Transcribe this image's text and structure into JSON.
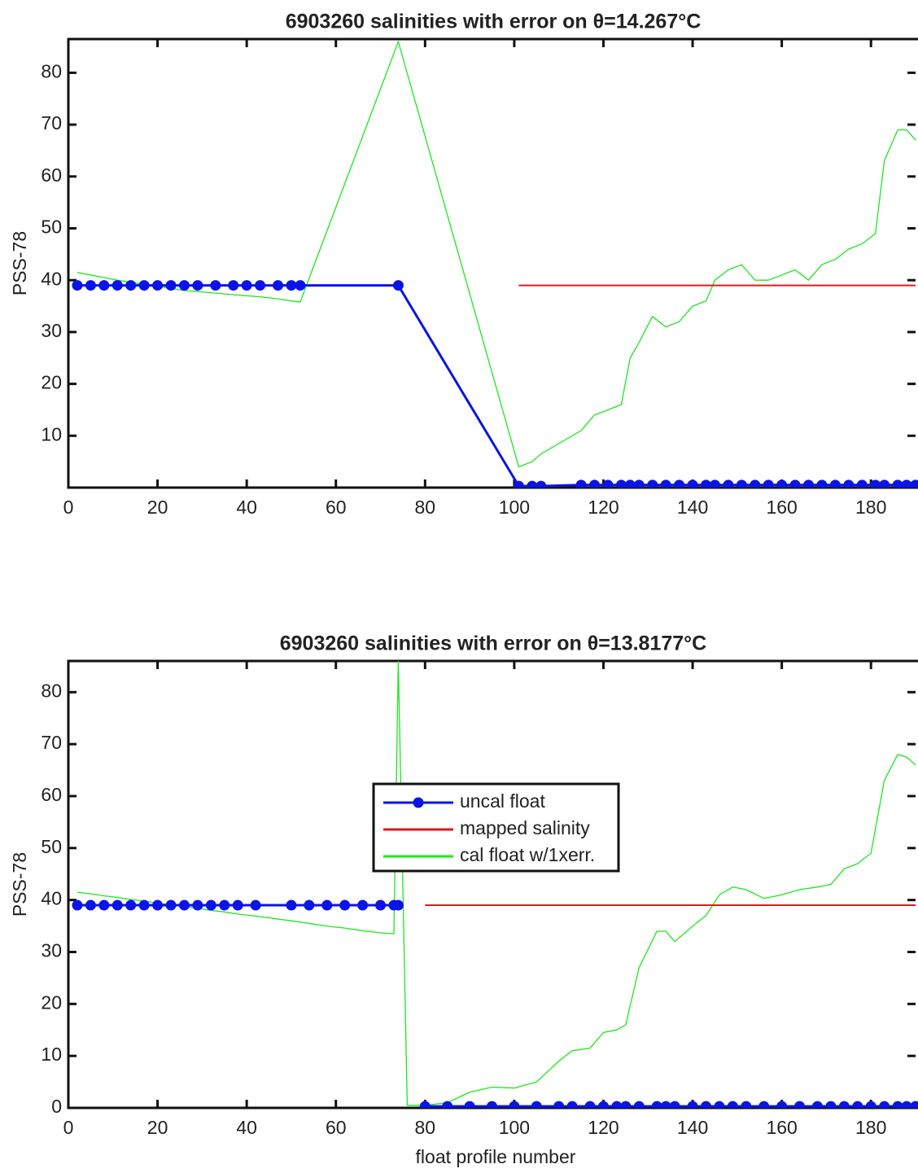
{
  "chart_data": [
    {
      "type": "line",
      "title": "6903260 salinities with error on θ=14.267°C",
      "ylabel": "PSS-78",
      "x": [
        2,
        5,
        8,
        11,
        14,
        17,
        20,
        23,
        26,
        29,
        33,
        37,
        40,
        43,
        47,
        50,
        52,
        74,
        101,
        104,
        106,
        115,
        118,
        121,
        124,
        126,
        128,
        131,
        134,
        137,
        140,
        143,
        145,
        148,
        151,
        154,
        157,
        160,
        163,
        166,
        169,
        172,
        175,
        178,
        181,
        183,
        186,
        188,
        190
      ],
      "xlim": [
        0,
        190
      ],
      "xticks": [
        0,
        20,
        40,
        60,
        80,
        100,
        120,
        140,
        160,
        180
      ],
      "ylim": [
        0,
        86.5
      ],
      "yticks": [
        10,
        20,
        30,
        40,
        50,
        60,
        70,
        80
      ],
      "series": [
        {
          "name": "uncal float",
          "color": "#0a14e6",
          "marker": "circle",
          "values": [
            39,
            39,
            39,
            39,
            39,
            39,
            39,
            39,
            39,
            39,
            39,
            39,
            39,
            39,
            39,
            39,
            39,
            39,
            0.3,
            0.3,
            0.3,
            0.5,
            0.5,
            0.5,
            0.5,
            0.5,
            0.5,
            0.5,
            0.5,
            0.5,
            0.5,
            0.5,
            0.5,
            0.5,
            0.5,
            0.5,
            0.5,
            0.5,
            0.5,
            0.5,
            0.5,
            0.5,
            0.5,
            0.5,
            0.5,
            0.5,
            0.5,
            0.5,
            0.5
          ]
        },
        {
          "name": "mapped salinity",
          "color": "#e01818",
          "values": [
            null,
            null,
            null,
            null,
            null,
            null,
            null,
            null,
            null,
            null,
            null,
            null,
            null,
            null,
            null,
            null,
            null,
            null,
            39,
            39,
            39,
            39,
            39,
            39,
            39,
            39,
            39,
            39,
            39,
            39,
            39,
            39,
            39,
            39,
            39,
            39,
            39,
            39,
            39,
            39,
            39,
            39,
            39,
            39,
            39,
            39,
            39,
            39,
            39
          ]
        },
        {
          "name": "cal float w/1xerr.",
          "color": "#1ee61e",
          "values": [
            41.5,
            41,
            40.5,
            40,
            39.6,
            39.2,
            38.8,
            38.4,
            38,
            37.8,
            37.5,
            37.2,
            37,
            36.8,
            36.4,
            36,
            35.8,
            86,
            4,
            5,
            6.5,
            11,
            14,
            15,
            16,
            25,
            28,
            33,
            31,
            32,
            35,
            36,
            40,
            42,
            43,
            40,
            40,
            41,
            42,
            40,
            43,
            44,
            46,
            47,
            49,
            63,
            69,
            69,
            67
          ]
        }
      ]
    },
    {
      "type": "line",
      "title": "6903260 salinities with error on θ=13.8177°C",
      "ylabel": "PSS-78",
      "xlabel": "float profile number",
      "legend": "center",
      "x": [
        2,
        5,
        8,
        11,
        14,
        17,
        20,
        23,
        26,
        29,
        32,
        35,
        38,
        42,
        50,
        54,
        58,
        62,
        66,
        70,
        73,
        74,
        76,
        80,
        85,
        90,
        95,
        100,
        105,
        110,
        113,
        117,
        120,
        123,
        125,
        128,
        132,
        134,
        136,
        140,
        143,
        146,
        149,
        152,
        156,
        160,
        164,
        168,
        171,
        174,
        177,
        180,
        183,
        186,
        188,
        190
      ],
      "xlim": [
        0,
        190
      ],
      "xticks": [
        0,
        20,
        40,
        60,
        80,
        100,
        120,
        140,
        160,
        180
      ],
      "ylim": [
        0,
        86
      ],
      "yticks": [
        0,
        10,
        20,
        30,
        40,
        50,
        60,
        70,
        80
      ],
      "series": [
        {
          "name": "uncal float",
          "color": "#0a14e6",
          "marker": "circle",
          "values": [
            39,
            39,
            39,
            39,
            39,
            39,
            39,
            39,
            39,
            39,
            39,
            39,
            39,
            39,
            39,
            39,
            39,
            39,
            39,
            39,
            39,
            39,
            null,
            0.3,
            0.3,
            0.3,
            0.3,
            0.3,
            0.3,
            0.3,
            0.3,
            0.3,
            0.3,
            0.3,
            0.3,
            0.3,
            0.3,
            0.3,
            0.3,
            0.3,
            0.3,
            0.3,
            0.3,
            0.3,
            0.3,
            0.3,
            0.3,
            0.3,
            0.3,
            0.3,
            0.3,
            0.3,
            0.3,
            0.3,
            0.3,
            0.3
          ]
        },
        {
          "name": "mapped salinity",
          "color": "#e01818",
          "values": [
            null,
            null,
            null,
            null,
            null,
            null,
            null,
            null,
            null,
            null,
            null,
            null,
            null,
            null,
            null,
            null,
            null,
            null,
            null,
            null,
            null,
            null,
            null,
            39,
            39,
            39,
            39,
            39,
            39,
            39,
            39,
            39,
            39,
            39,
            39,
            39,
            39,
            39,
            39,
            39,
            39,
            39,
            39,
            39,
            39,
            39,
            39,
            39,
            39,
            39,
            39,
            39,
            39,
            39,
            39,
            39
          ]
        },
        {
          "name": "cal float w/1xerr.",
          "color": "#1ee61e",
          "values": [
            41.5,
            41.2,
            40.8,
            40.5,
            40.1,
            39.8,
            39.4,
            39.1,
            38.7,
            38.4,
            38,
            37.7,
            37.3,
            36.9,
            36,
            35.5,
            35,
            34.6,
            34.1,
            33.7,
            33.5,
            86,
            0.5,
            0.5,
            1,
            3,
            4,
            3.8,
            5,
            9,
            11,
            11.5,
            14.5,
            15,
            16,
            27,
            34,
            34,
            32,
            35,
            37,
            41,
            42.5,
            42,
            40.3,
            41,
            42,
            42.5,
            43,
            46,
            47,
            49,
            63,
            68,
            67.5,
            66
          ]
        }
      ]
    }
  ]
}
